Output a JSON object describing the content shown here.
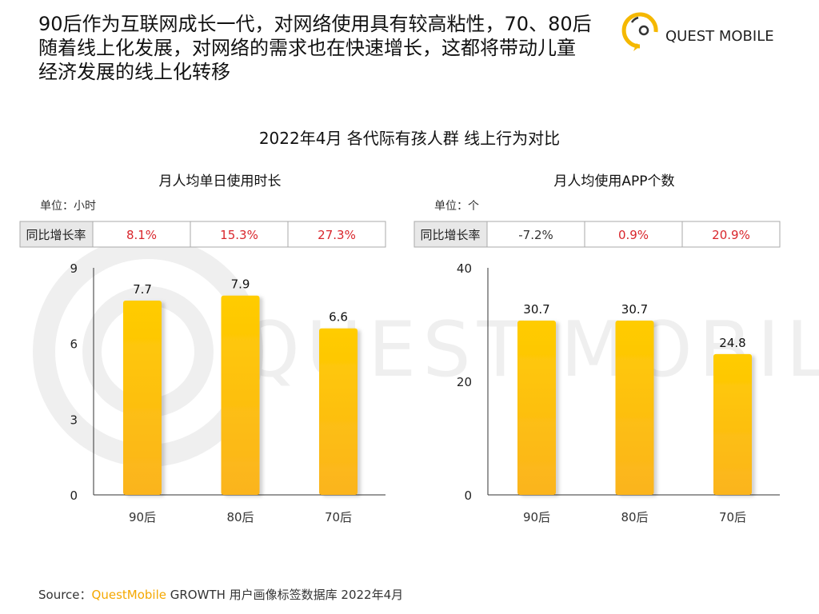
{
  "headline": [
    "90后作为互联网成长一代，对网络使用具有较高粘性，70、80后",
    "随着线上化发展，对网络的需求也在快速增长，这都将带动儿童",
    "经济发展的线上化转移"
  ],
  "logo": {
    "text": "QUEST MOBILE",
    "watermark": "QUEST MOBILE",
    "color": "#F5B800"
  },
  "main_title": "2022年4月 各代际有孩人群 线上行为对比",
  "colors": {
    "bar_top": "#FFCC00",
    "bar_bottom": "#FBB41F",
    "positive": "#D9262C",
    "negative": "#333333"
  },
  "chart_data": [
    {
      "type": "bar",
      "title": "月人均单日使用时长",
      "unit": "单位：小时",
      "categories": [
        "90后",
        "80后",
        "70后"
      ],
      "values": [
        7.7,
        7.9,
        6.6
      ],
      "value_labels": [
        "7.7",
        "7.9",
        "6.6"
      ],
      "ylim": [
        0,
        9
      ],
      "yticks": [
        "0",
        "3",
        "6",
        "9"
      ],
      "ytick_values": [
        0,
        3,
        6,
        9
      ],
      "growth_label": "同比增长率",
      "growth": [
        "8.1%",
        "15.3%",
        "27.3%"
      ],
      "growth_positive": [
        true,
        true,
        true
      ]
    },
    {
      "type": "bar",
      "title": "月人均使用APP个数",
      "unit": "单位：个",
      "categories": [
        "90后",
        "80后",
        "70后"
      ],
      "values": [
        30.7,
        30.7,
        24.8
      ],
      "value_labels": [
        "30.7",
        "30.7",
        "24.8"
      ],
      "ylim": [
        0,
        40
      ],
      "yticks": [
        "0",
        "20",
        "40"
      ],
      "ytick_values": [
        0,
        20,
        40
      ],
      "growth_label": "同比增长率",
      "growth": [
        "-7.2%",
        "0.9%",
        "20.9%"
      ],
      "growth_positive": [
        false,
        true,
        true
      ]
    }
  ],
  "source": {
    "prefix": "Source：",
    "brand": "QuestMobile",
    "rest": " GROWTH 用户画像标签数据库 2022年4月"
  }
}
